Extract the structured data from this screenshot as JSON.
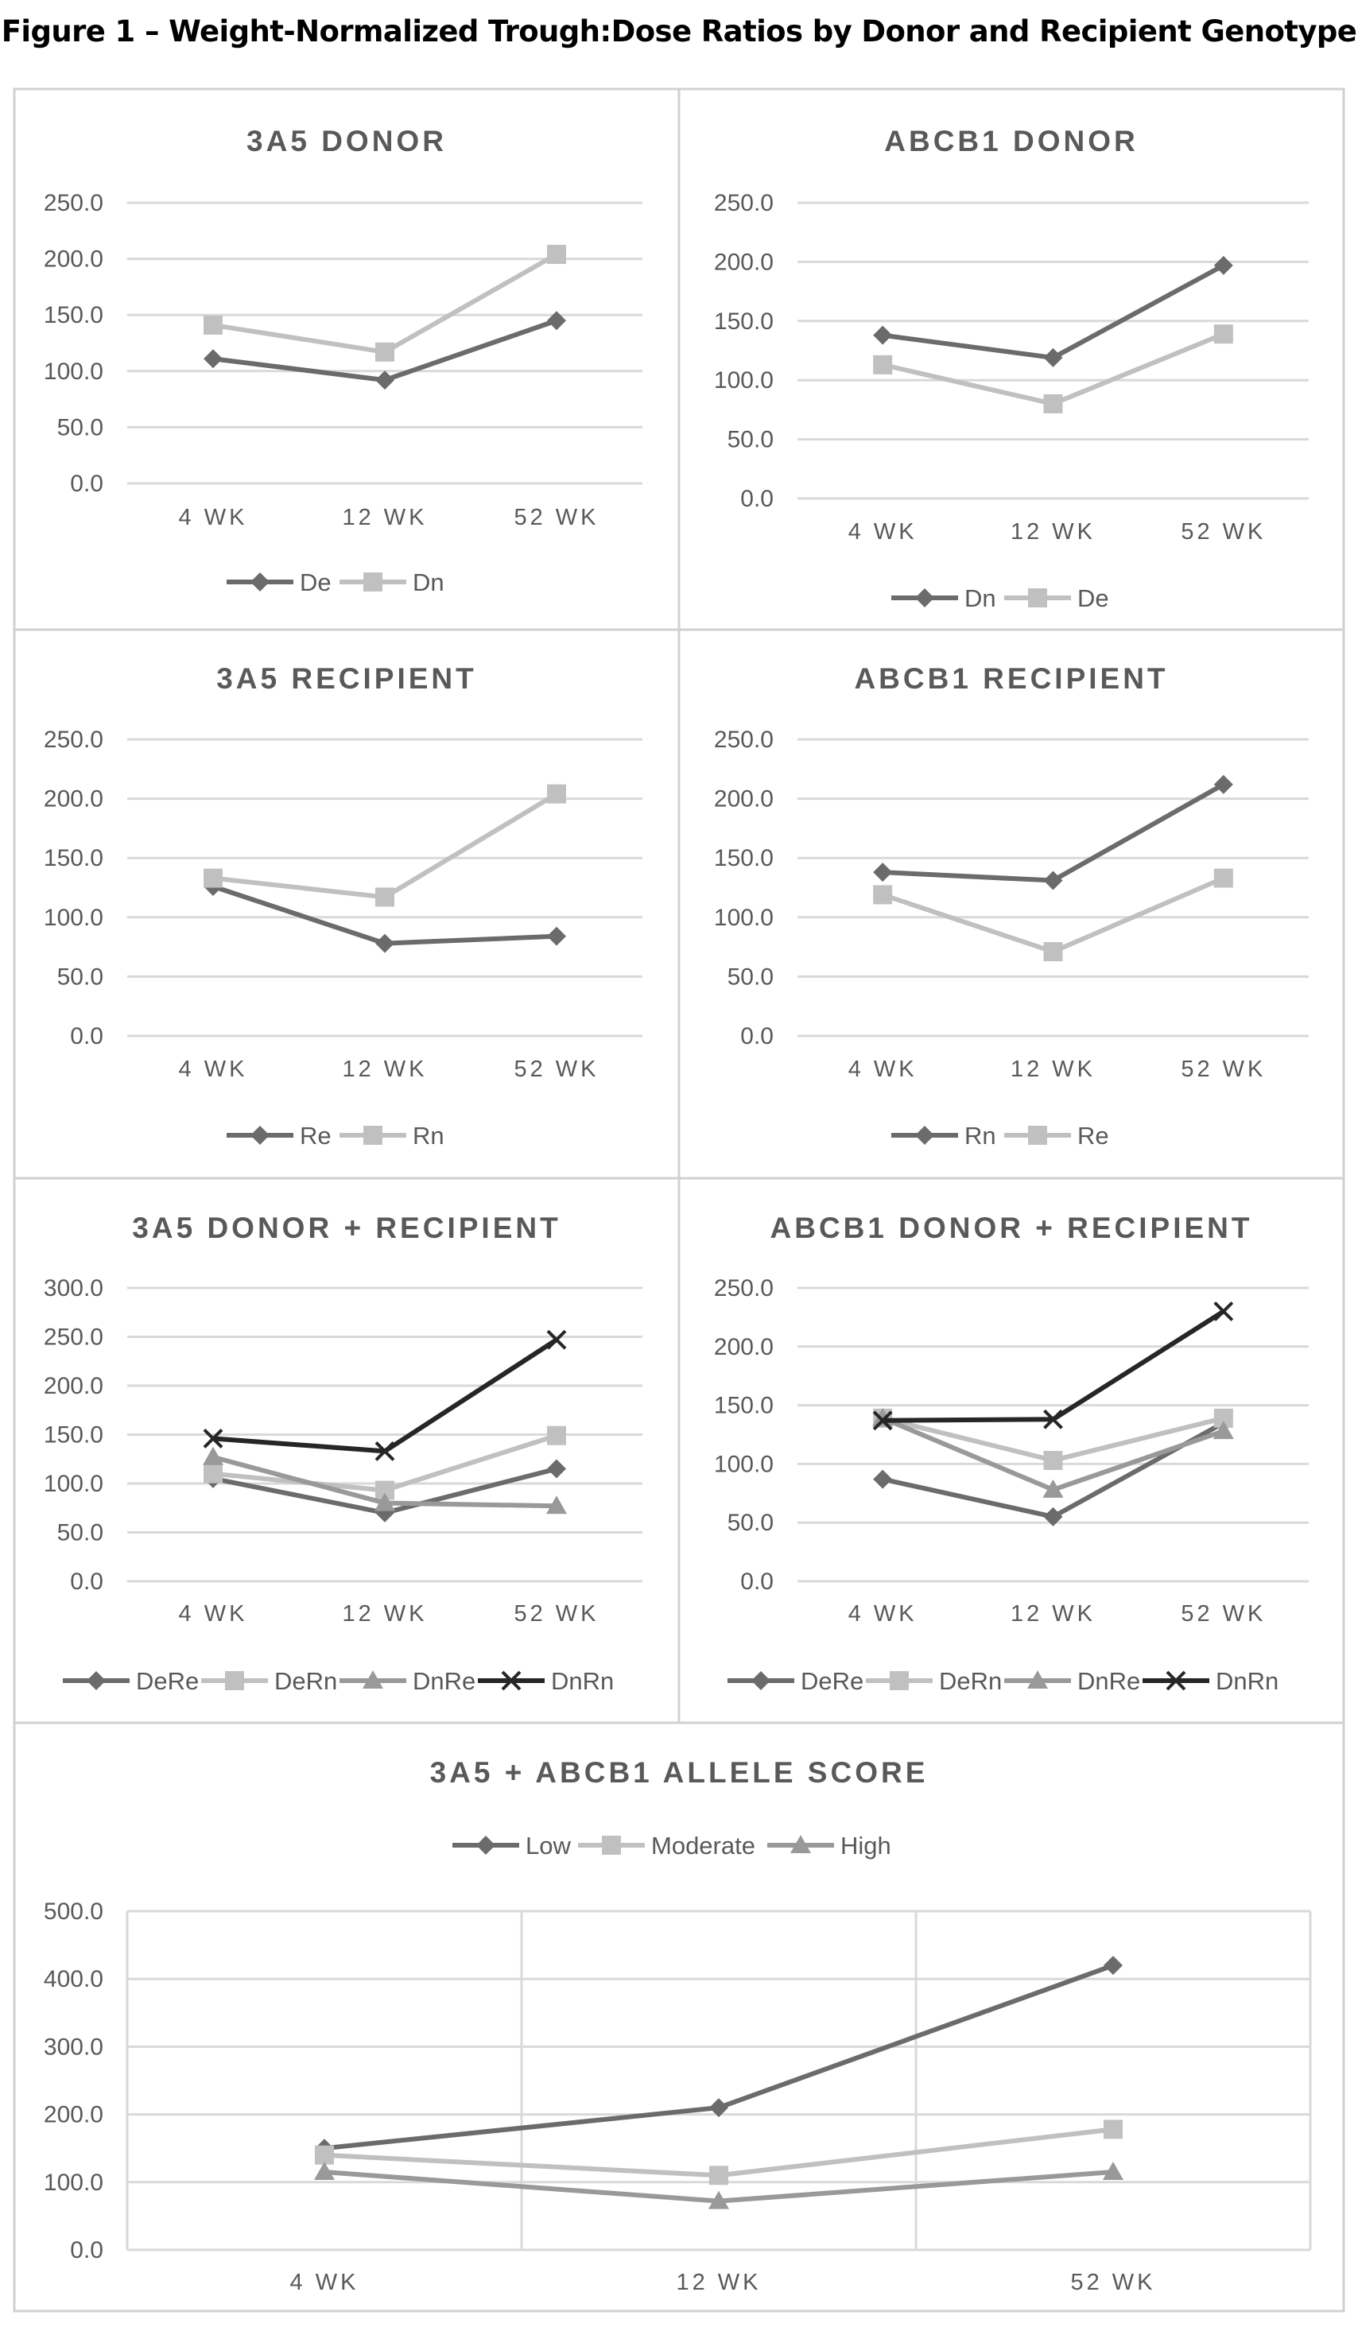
{
  "figure_title": "Figure 1 – Weight-Normalized Trough:Dose Ratios by Donor and Recipient Genotype",
  "colors": {
    "dark": "#6b6b6b",
    "light": "#c0c0c0",
    "mid": "#999999",
    "black": "#262626",
    "grid": "#d9d9d9",
    "border": "#d0d0d0",
    "text": "#595959"
  },
  "chart_data": [
    {
      "type": "line",
      "title": "3A5 DONOR",
      "categories": [
        "4 WK",
        "12 WK",
        "52 WK"
      ],
      "ylim": [
        0,
        250
      ],
      "yticks": [
        "0.0",
        "50.0",
        "100.0",
        "150.0",
        "200.0",
        "250.0"
      ],
      "legend_position": "bottom",
      "grid": true,
      "series": [
        {
          "name": "De",
          "values": [
            111,
            92,
            145
          ],
          "color": "dark",
          "marker": "diamond"
        },
        {
          "name": "Dn",
          "values": [
            141,
            117,
            204
          ],
          "color": "light",
          "marker": "square"
        }
      ]
    },
    {
      "type": "line",
      "title": "ABCB1 DONOR",
      "categories": [
        "4 WK",
        "12 WK",
        "52 WK"
      ],
      "ylim": [
        0,
        250
      ],
      "yticks": [
        "0.0",
        "50.0",
        "100.0",
        "150.0",
        "200.0",
        "250.0"
      ],
      "legend_position": "bottom",
      "grid": true,
      "series": [
        {
          "name": "Dn",
          "values": [
            138,
            119,
            197
          ],
          "color": "dark",
          "marker": "diamond"
        },
        {
          "name": "De",
          "values": [
            113,
            80,
            139
          ],
          "color": "light",
          "marker": "square"
        }
      ]
    },
    {
      "type": "line",
      "title": "3A5 RECIPIENT",
      "categories": [
        "4 WK",
        "12 WK",
        "52 WK"
      ],
      "ylim": [
        0,
        250
      ],
      "yticks": [
        "0.0",
        "50.0",
        "100.0",
        "150.0",
        "200.0",
        "250.0"
      ],
      "legend_position": "bottom",
      "grid": true,
      "series": [
        {
          "name": "Re",
          "values": [
            126,
            78,
            84
          ],
          "color": "dark",
          "marker": "diamond"
        },
        {
          "name": "Rn",
          "values": [
            133,
            117,
            204
          ],
          "color": "light",
          "marker": "square"
        }
      ]
    },
    {
      "type": "line",
      "title": "ABCB1 RECIPIENT",
      "categories": [
        "4 WK",
        "12 WK",
        "52 WK"
      ],
      "ylim": [
        0,
        250
      ],
      "yticks": [
        "0.0",
        "50.0",
        "100.0",
        "150.0",
        "200.0",
        "250.0"
      ],
      "legend_position": "bottom",
      "grid": true,
      "series": [
        {
          "name": "Rn",
          "values": [
            138,
            131,
            212
          ],
          "color": "dark",
          "marker": "diamond"
        },
        {
          "name": "Re",
          "values": [
            119,
            71,
            133
          ],
          "color": "light",
          "marker": "square"
        }
      ]
    },
    {
      "type": "line",
      "title": "3A5 DONOR + RECIPIENT",
      "categories": [
        "4 WK",
        "12 WK",
        "52 WK"
      ],
      "ylim": [
        0,
        300
      ],
      "yticks": [
        "0.0",
        "50.0",
        "100.0",
        "150.0",
        "200.0",
        "250.0",
        "300.0"
      ],
      "legend_position": "bottom",
      "grid": true,
      "series": [
        {
          "name": "DeRe",
          "values": [
            105,
            70,
            115
          ],
          "color": "dark",
          "marker": "diamond"
        },
        {
          "name": "DeRn",
          "values": [
            110,
            93,
            149
          ],
          "color": "light",
          "marker": "square"
        },
        {
          "name": "DnRe",
          "values": [
            127,
            80,
            77
          ],
          "color": "mid",
          "marker": "triangle"
        },
        {
          "name": "DnRn",
          "values": [
            146,
            133,
            247
          ],
          "color": "black",
          "marker": "x"
        }
      ]
    },
    {
      "type": "line",
      "title": "ABCB1 DONOR + RECIPIENT",
      "categories": [
        "4 WK",
        "12 WK",
        "52 WK"
      ],
      "ylim": [
        0,
        250
      ],
      "yticks": [
        "0.0",
        "50.0",
        "100.0",
        "150.0",
        "200.0",
        "250.0"
      ],
      "legend_position": "bottom",
      "grid": true,
      "series": [
        {
          "name": "DeRe",
          "values": [
            87,
            55,
            135
          ],
          "color": "dark",
          "marker": "diamond"
        },
        {
          "name": "DeRn",
          "values": [
            139,
            103,
            139
          ],
          "color": "light",
          "marker": "square"
        },
        {
          "name": "DnRe",
          "values": [
            139,
            78,
            128
          ],
          "color": "mid",
          "marker": "triangle"
        },
        {
          "name": "DnRn",
          "values": [
            137,
            138,
            230
          ],
          "color": "black",
          "marker": "x"
        }
      ]
    },
    {
      "type": "line",
      "title": "3A5 + ABCB1 ALLELE SCORE",
      "categories": [
        "4 WK",
        "12 WK",
        "52 WK"
      ],
      "ylim": [
        0,
        500
      ],
      "yticks": [
        "0.0",
        "100.0",
        "200.0",
        "300.0",
        "400.0",
        "500.0"
      ],
      "legend_position": "top",
      "grid": true,
      "series": [
        {
          "name": "Low",
          "values": [
            150,
            210,
            420
          ],
          "color": "dark",
          "marker": "diamond"
        },
        {
          "name": "Moderate",
          "values": [
            140,
            110,
            178
          ],
          "color": "light",
          "marker": "square"
        },
        {
          "name": "High",
          "values": [
            115,
            72,
            115
          ],
          "color": "mid",
          "marker": "triangle"
        }
      ]
    }
  ]
}
